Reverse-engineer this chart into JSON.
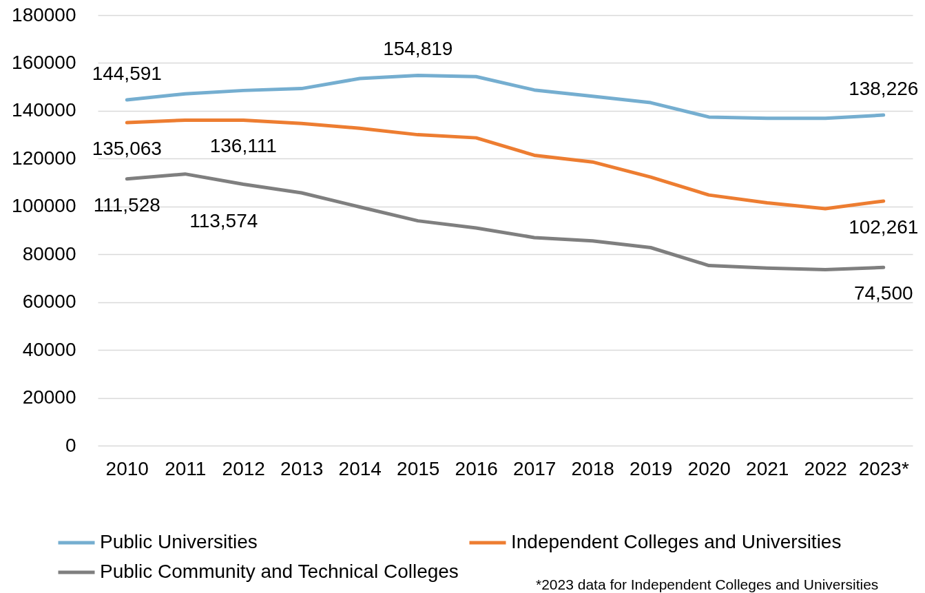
{
  "chart_data": {
    "type": "line",
    "categories": [
      "2010",
      "2011",
      "2012",
      "2013",
      "2014",
      "2015",
      "2016",
      "2017",
      "2018",
      "2019",
      "2020",
      "2021",
      "2022",
      "2023*"
    ],
    "series": [
      {
        "name": "Public Universities",
        "color": "#75aed0",
        "values": [
          144591,
          147100,
          148500,
          149300,
          153500,
          154819,
          154300,
          148700,
          146100,
          143400,
          137400,
          136900,
          136900,
          138226
        ],
        "value_labels": [
          "144,591",
          null,
          null,
          null,
          null,
          "154,819",
          null,
          null,
          null,
          null,
          null,
          null,
          null,
          "138,226"
        ]
      },
      {
        "name": "Independent Colleges and Universities",
        "color": "#ed7d31",
        "values": [
          135063,
          136100,
          136111,
          134700,
          132700,
          130000,
          128700,
          121400,
          118600,
          112300,
          104800,
          101500,
          99100,
          102261
        ],
        "value_labels": [
          "135,063",
          null,
          "136,111",
          null,
          null,
          null,
          null,
          null,
          null,
          null,
          null,
          null,
          null,
          "102,261"
        ]
      },
      {
        "name": "Public Community and Technical Colleges",
        "color": "#7f7f7f",
        "values": [
          111528,
          113574,
          109300,
          105700,
          99800,
          94000,
          91000,
          87000,
          85600,
          82800,
          75300,
          74200,
          73600,
          74500
        ],
        "value_labels": [
          "111,528",
          "113,574",
          null,
          null,
          null,
          null,
          null,
          null,
          null,
          null,
          null,
          null,
          null,
          "74,500"
        ]
      }
    ],
    "ylim": [
      0,
      180000
    ],
    "yticks": [
      0,
      20000,
      40000,
      60000,
      80000,
      100000,
      120000,
      140000,
      160000,
      180000
    ],
    "grid": "y",
    "legend": "bottom",
    "line_style": "solid",
    "annotations": [
      "*2023 data for Independent Colleges and Universities"
    ]
  }
}
